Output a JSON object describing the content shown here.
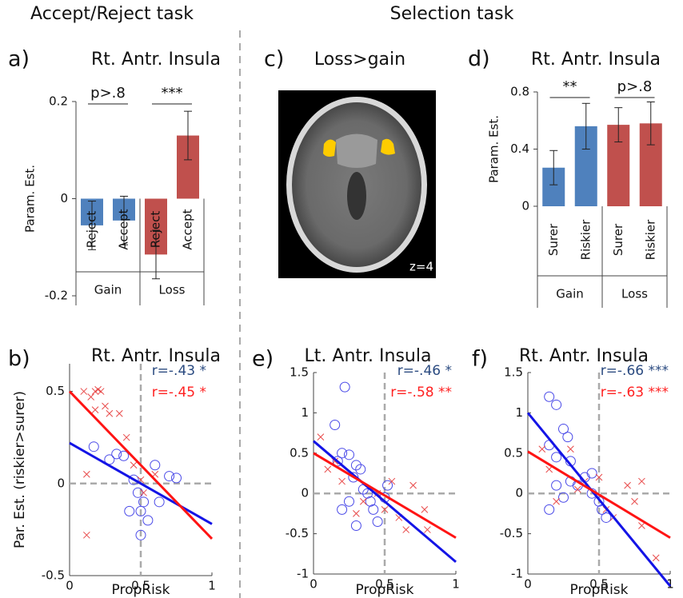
{
  "headings": [
    "Accept/Reject task",
    "Selection task"
  ],
  "brain_image": {
    "label": "c)",
    "title": "Loss>gain",
    "slice": "z=4"
  },
  "chart_data": [
    {
      "type": "bar",
      "label": "a)",
      "title": "Rt. Antr. Insula",
      "ylabel": "Param. Est.",
      "categories": [
        "Reject",
        "Accept",
        "Reject",
        "Accept"
      ],
      "groups": [
        "Gain",
        "Loss"
      ],
      "group_annotations": [
        "p>.8",
        "***"
      ],
      "values": [
        -0.055,
        -0.045,
        -0.115,
        0.13
      ],
      "errors": [
        0.05,
        0.05,
        0.05,
        0.05
      ],
      "colors": [
        "#4f81bd",
        "#4f81bd",
        "#c0504d",
        "#c0504d"
      ],
      "ylim": [
        -0.2,
        0.2
      ],
      "yticks": [
        -0.2,
        0,
        0.2
      ]
    },
    {
      "type": "bar",
      "label": "d)",
      "title": "Rt. Antr. Insula",
      "ylabel": "Param. Est.",
      "categories": [
        "Surer",
        "Riskier",
        "Surer",
        "Riskier"
      ],
      "groups": [
        "Gain",
        "Loss"
      ],
      "group_annotations": [
        "**",
        "p>.8"
      ],
      "values": [
        0.27,
        0.56,
        0.57,
        0.58
      ],
      "errors": [
        0.12,
        0.16,
        0.12,
        0.15
      ],
      "colors": [
        "#4f81bd",
        "#4f81bd",
        "#c0504d",
        "#c0504d"
      ],
      "ylim": [
        0,
        0.8
      ],
      "yticks": [
        0,
        0.4,
        0.8
      ]
    },
    {
      "type": "scatter",
      "label": "b)",
      "title": "Rt. Antr. Insula",
      "xlabel": "PropRisk",
      "ylabel": "Par. Est. (riskier>surer)",
      "xlim": [
        0,
        1
      ],
      "xticks": [
        0,
        0.5,
        1
      ],
      "ylim": [
        -0.5,
        0.65
      ],
      "yticks": [
        -0.5,
        0,
        0.5
      ],
      "ref_x": 0.5,
      "ref_y": 0,
      "series": [
        {
          "marker": "circle",
          "color": "#4a4ae8",
          "x": [
            0.17,
            0.28,
            0.33,
            0.38,
            0.42,
            0.45,
            0.48,
            0.5,
            0.5,
            0.52,
            0.55,
            0.6,
            0.63,
            0.7,
            0.75
          ],
          "values": [
            0.2,
            0.13,
            0.16,
            0.15,
            -0.15,
            0.02,
            -0.05,
            -0.15,
            -0.28,
            -0.1,
            -0.2,
            0.1,
            -0.1,
            0.04,
            0.03
          ]
        },
        {
          "marker": "x",
          "color": "#e84a4a",
          "x": [
            0.1,
            0.15,
            0.18,
            0.2,
            0.22,
            0.25,
            0.28,
            0.18,
            0.35,
            0.4,
            0.45,
            0.12,
            0.5,
            0.52,
            0.12,
            0.6
          ],
          "values": [
            0.5,
            0.47,
            0.5,
            0.51,
            0.5,
            0.42,
            0.38,
            0.4,
            0.38,
            0.25,
            0.1,
            0.05,
            0.02,
            -0.05,
            -0.28,
            0.05
          ]
        }
      ],
      "fit_lines": [
        {
          "color": "#1414e6",
          "x": [
            0,
            1
          ],
          "values": [
            0.22,
            -0.22
          ]
        },
        {
          "color": "#ff1414",
          "x": [
            0,
            1
          ],
          "values": [
            0.5,
            -0.3
          ]
        }
      ],
      "annotations": [
        {
          "text": "r=-.43 *",
          "color": "#2a4a80"
        },
        {
          "text": "r=-.45 *",
          "color": "#ff2020"
        }
      ]
    },
    {
      "type": "scatter",
      "label": "e)",
      "title": "Lt. Antr. Insula",
      "xlabel": "PropRisk",
      "xlim": [
        0,
        1
      ],
      "xticks": [
        0,
        0.5,
        1
      ],
      "ylim": [
        -1,
        1.5
      ],
      "yticks": [
        -1,
        -0.5,
        0,
        0.5,
        1,
        1.5
      ],
      "ref_x": 0.5,
      "ref_y": 0,
      "series": [
        {
          "marker": "circle",
          "color": "#4a4ae8",
          "x": [
            0.15,
            0.17,
            0.2,
            0.22,
            0.25,
            0.3,
            0.28,
            0.33,
            0.35,
            0.38,
            0.2,
            0.25,
            0.3,
            0.42,
            0.45,
            0.5,
            0.52,
            0.4
          ],
          "values": [
            0.85,
            0.4,
            0.5,
            1.32,
            0.48,
            0.35,
            0.2,
            0.3,
            0.05,
            0.0,
            -0.2,
            -0.1,
            -0.4,
            -0.2,
            -0.35,
            -0.05,
            0.1,
            -0.1
          ]
        },
        {
          "marker": "x",
          "color": "#e84a4a",
          "x": [
            0.05,
            0.1,
            0.15,
            0.2,
            0.3,
            0.35,
            0.45,
            0.55,
            0.6,
            0.65,
            0.7,
            0.78,
            0.8,
            0.5
          ],
          "values": [
            0.7,
            0.3,
            0.4,
            0.15,
            -0.25,
            -0.1,
            0.0,
            0.15,
            -0.3,
            -0.45,
            0.1,
            -0.2,
            -0.45,
            -0.2
          ]
        }
      ],
      "fit_lines": [
        {
          "color": "#1414e6",
          "x": [
            0,
            1
          ],
          "values": [
            0.65,
            -0.85
          ]
        },
        {
          "color": "#ff1414",
          "x": [
            0,
            1
          ],
          "values": [
            0.5,
            -0.55
          ]
        }
      ],
      "annotations": [
        {
          "text": "r=-.46 *",
          "color": "#2a4a80"
        },
        {
          "text": "r=-.58 **",
          "color": "#ff2020"
        }
      ]
    },
    {
      "type": "scatter",
      "label": "f)",
      "title": "Rt. Antr. Insula",
      "xlabel": "PropRisk",
      "xlim": [
        0,
        1
      ],
      "xticks": [
        0,
        0.5,
        1
      ],
      "ylim": [
        -1,
        1.5
      ],
      "yticks": [
        -1,
        -0.5,
        0,
        0.5,
        1,
        1.5
      ],
      "ref_x": 0.5,
      "ref_y": 0,
      "series": [
        {
          "marker": "circle",
          "color": "#4a4ae8",
          "x": [
            0.15,
            0.2,
            0.15,
            0.2,
            0.25,
            0.3,
            0.28,
            0.3,
            0.35,
            0.4,
            0.45,
            0.45,
            0.5,
            0.52,
            0.55,
            0.25,
            0.2,
            0.15
          ],
          "values": [
            1.2,
            1.1,
            0.6,
            0.45,
            0.8,
            0.4,
            0.7,
            0.15,
            0.1,
            0.2,
            0.25,
            0.0,
            -0.1,
            -0.2,
            -0.3,
            -0.05,
            0.1,
            -0.2
          ]
        },
        {
          "marker": "x",
          "color": "#e84a4a",
          "x": [
            0.1,
            0.15,
            0.2,
            0.3,
            0.35,
            0.4,
            0.5,
            0.55,
            0.6,
            0.7,
            0.75,
            0.8,
            0.8,
            0.9
          ],
          "values": [
            0.55,
            0.3,
            -0.1,
            0.55,
            0.05,
            0.15,
            0.2,
            -0.2,
            -0.3,
            0.1,
            -0.1,
            0.15,
            -0.4,
            -0.8
          ]
        }
      ],
      "fit_lines": [
        {
          "color": "#1414e6",
          "x": [
            0,
            1
          ],
          "values": [
            1.0,
            -1.15
          ]
        },
        {
          "color": "#ff1414",
          "x": [
            0,
            1
          ],
          "values": [
            0.52,
            -0.55
          ]
        }
      ],
      "annotations": [
        {
          "text": "r=-.66 ***",
          "color": "#2a4a80"
        },
        {
          "text": "r=-.63 ***",
          "color": "#ff2020"
        }
      ]
    }
  ]
}
